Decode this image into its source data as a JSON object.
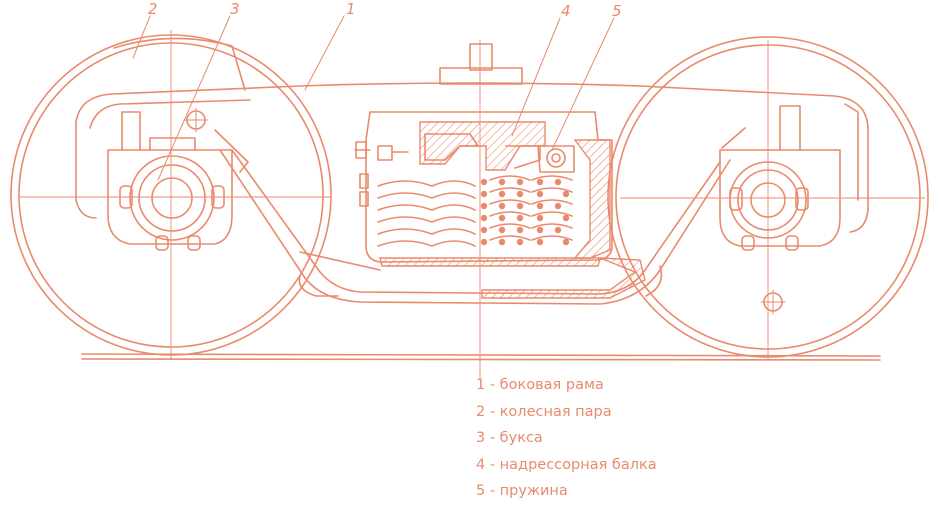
{
  "callouts": [
    {
      "num": "1"
    },
    {
      "num": "2"
    },
    {
      "num": "3"
    },
    {
      "num": "4"
    },
    {
      "num": "5"
    }
  ],
  "legend": [
    {
      "text": "1 - боковая рама"
    },
    {
      "text": "2 - колесная пара"
    },
    {
      "text": "3 - букса"
    },
    {
      "text": "4 - надрессорная балка"
    },
    {
      "text": "5 - пружина"
    }
  ],
  "colors": {
    "line": "#ea8a6c",
    "text": "#e88a6e",
    "background": "#ffffff"
  }
}
